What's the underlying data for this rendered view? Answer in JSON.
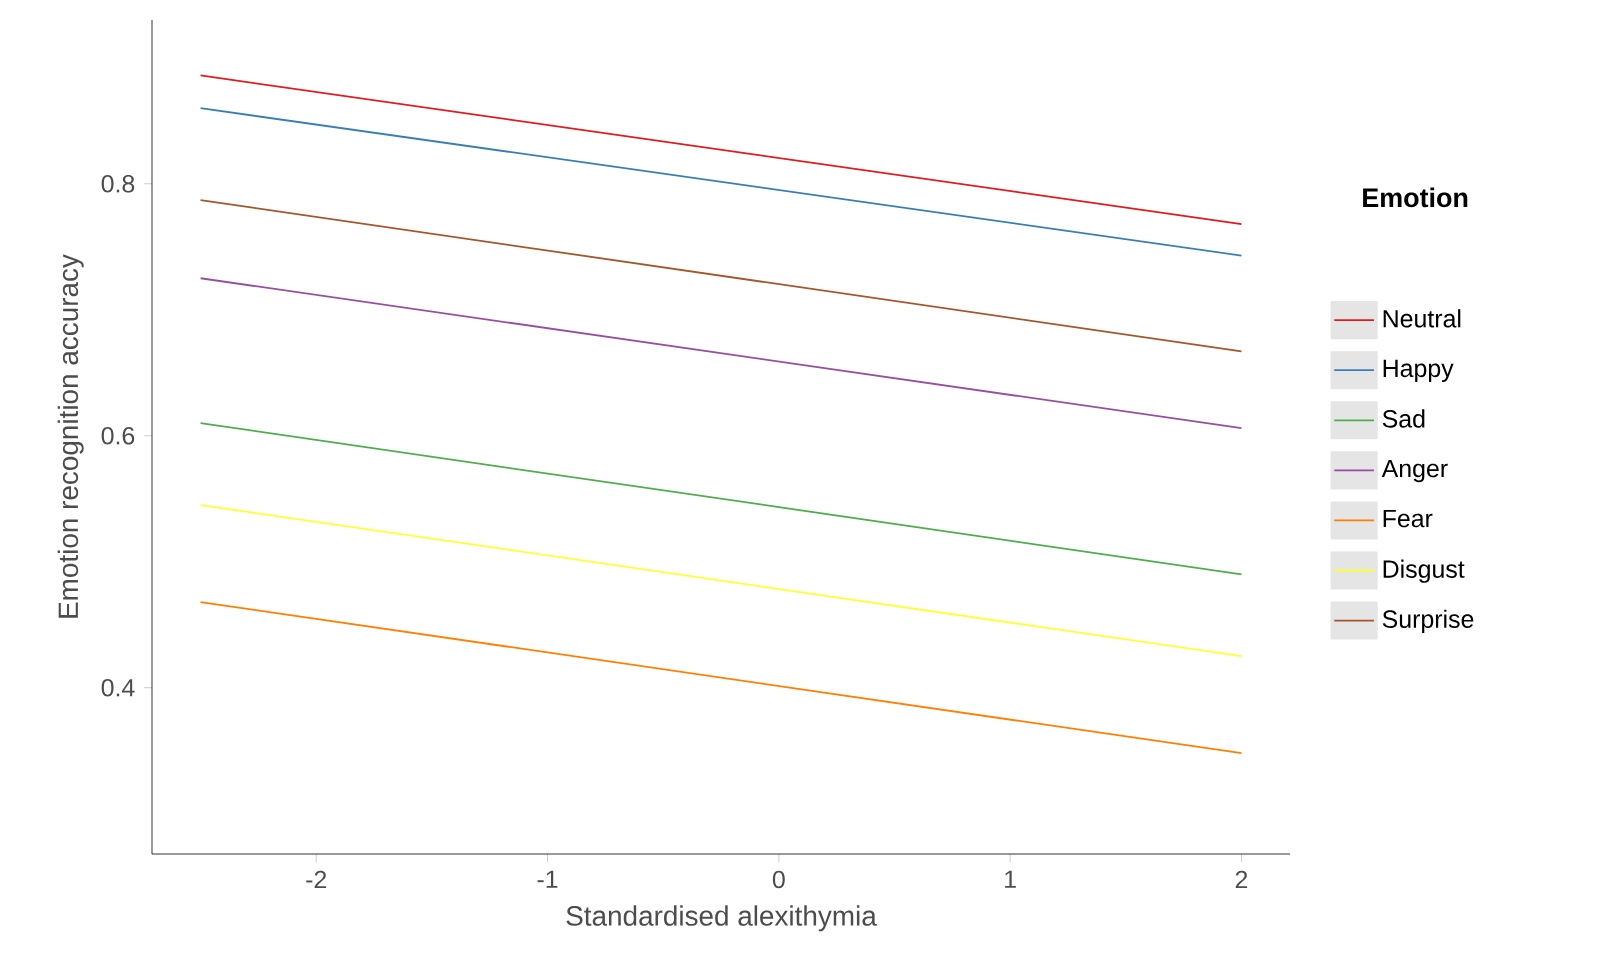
{
  "chart_data": {
    "type": "line",
    "xlabel": "Standardised alexithymia",
    "ylabel": "Emotion recognition accuracy",
    "legend_title": "Emotion",
    "legend": "right",
    "x": [
      -2.5,
      2
    ],
    "xlim": [
      -2.71,
      2.21
    ],
    "ylim": [
      0.268,
      0.93
    ],
    "xticks": [
      -2,
      -1,
      0,
      1,
      2
    ],
    "yticks": [
      0.4,
      0.6,
      0.8
    ],
    "grid": false,
    "series": [
      {
        "name": "Neutral",
        "color": "#e41a1c",
        "values": [
          0.886,
          0.768
        ]
      },
      {
        "name": "Happy",
        "color": "#377eb8",
        "values": [
          0.86,
          0.743
        ]
      },
      {
        "name": "Sad",
        "color": "#4daf4a",
        "values": [
          0.61,
          0.49
        ]
      },
      {
        "name": "Anger",
        "color": "#984ea3",
        "values": [
          0.725,
          0.606
        ]
      },
      {
        "name": "Fear",
        "color": "#ff7f00",
        "values": [
          0.468,
          0.348
        ]
      },
      {
        "name": "Disgust",
        "color": "#ffff33",
        "values": [
          0.545,
          0.425
        ]
      },
      {
        "name": "Surprise",
        "color": "#a65628",
        "values": [
          0.787,
          0.667
        ]
      }
    ]
  }
}
